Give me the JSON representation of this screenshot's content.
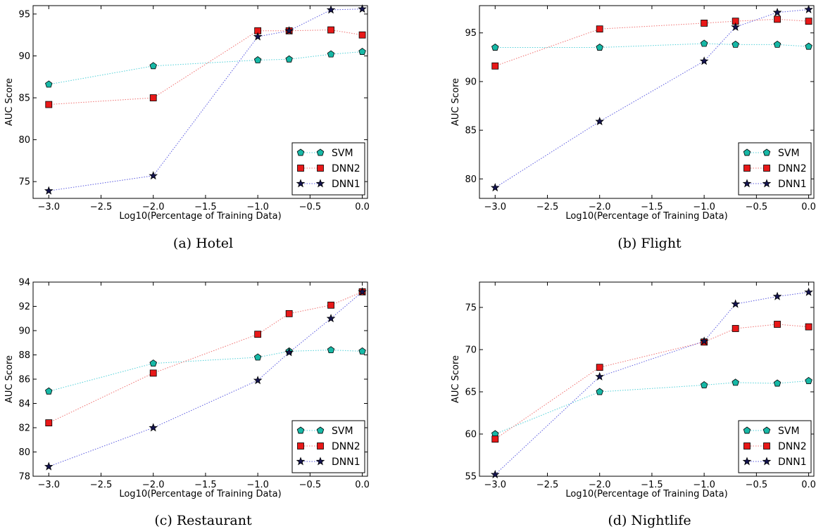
{
  "colors": {
    "SVM": "#17b8a6",
    "DNN2": "#e81818",
    "DNN1": "#141450",
    "SVM_line": "#4fd0d8",
    "DNN2_line": "#f07070",
    "DNN1_line": "#5a5ae0"
  },
  "chart_data": [
    {
      "type": "line",
      "caption": "(a) Hotel",
      "xlabel": "Log10(Percentage of Training Data)",
      "ylabel": "AUC Score",
      "xlim": [
        -3.15,
        0.05
      ],
      "ylim": [
        73,
        96
      ],
      "xticks": [
        -3.0,
        -2.5,
        -2.0,
        -1.5,
        -1.0,
        -0.5,
        0.0
      ],
      "xtick_labels": [
        "−3.0",
        "−2.5",
        "−2.0",
        "−1.5",
        "−1.0",
        "−0.5",
        "0.0"
      ],
      "yticks": [
        75,
        80,
        85,
        90,
        95
      ],
      "ytick_labels": [
        "75",
        "80",
        "85",
        "90",
        "95"
      ],
      "legend_position": "lower-right",
      "x": [
        -3.0,
        -2.0,
        -1.0,
        -0.7,
        -0.3,
        0.0
      ],
      "series": [
        {
          "name": "SVM",
          "marker": "pentagon",
          "values": [
            86.6,
            88.8,
            89.5,
            89.6,
            90.2,
            90.5
          ]
        },
        {
          "name": "DNN2",
          "marker": "square",
          "values": [
            84.2,
            85.0,
            93.0,
            93.0,
            93.1,
            92.5
          ]
        },
        {
          "name": "DNN1",
          "marker": "star",
          "values": [
            73.9,
            75.7,
            92.3,
            93.0,
            95.5,
            95.6
          ]
        }
      ]
    },
    {
      "type": "line",
      "caption": "(b) Flight",
      "xlabel": "Log10(Percentage of Training Data)",
      "ylabel": "AUC Score",
      "xlim": [
        -3.15,
        0.05
      ],
      "ylim": [
        78,
        97.8
      ],
      "xticks": [
        -3.0,
        -2.5,
        -2.0,
        -1.5,
        -1.0,
        -0.5,
        0.0
      ],
      "xtick_labels": [
        "−3.0",
        "−2.5",
        "−2.0",
        "−1.5",
        "−1.0",
        "−0.5",
        "0.0"
      ],
      "yticks": [
        80,
        85,
        90,
        95
      ],
      "ytick_labels": [
        "80",
        "85",
        "90",
        "95"
      ],
      "legend_position": "lower-right",
      "x": [
        -3.0,
        -2.0,
        -1.0,
        -0.7,
        -0.3,
        0.0
      ],
      "series": [
        {
          "name": "SVM",
          "marker": "pentagon",
          "values": [
            93.5,
            93.5,
            93.9,
            93.8,
            93.8,
            93.6
          ]
        },
        {
          "name": "DNN2",
          "marker": "square",
          "values": [
            91.6,
            95.4,
            96.0,
            96.2,
            96.4,
            96.2
          ]
        },
        {
          "name": "DNN1",
          "marker": "star",
          "values": [
            79.1,
            85.9,
            92.1,
            95.6,
            97.1,
            97.4
          ]
        }
      ]
    },
    {
      "type": "line",
      "caption": "(c) Restaurant",
      "xlabel": "Log10(Percentage of Training Data)",
      "ylabel": "AUC Score",
      "xlim": [
        -3.15,
        0.05
      ],
      "ylim": [
        78,
        94
      ],
      "xticks": [
        -3.0,
        -2.5,
        -2.0,
        -1.5,
        -1.0,
        -0.5,
        0.0
      ],
      "xtick_labels": [
        "−3.0",
        "−2.5",
        "−2.0",
        "−1.5",
        "−1.0",
        "−0.5",
        "0.0"
      ],
      "yticks": [
        78,
        80,
        82,
        84,
        86,
        88,
        90,
        92,
        94
      ],
      "ytick_labels": [
        "78",
        "80",
        "82",
        "84",
        "86",
        "88",
        "90",
        "92",
        "94"
      ],
      "legend_position": "lower-right",
      "x": [
        -3.0,
        -2.0,
        -1.0,
        -0.7,
        -0.3,
        0.0
      ],
      "series": [
        {
          "name": "SVM",
          "marker": "pentagon",
          "values": [
            85.0,
            87.3,
            87.8,
            88.3,
            88.4,
            88.3
          ]
        },
        {
          "name": "DNN2",
          "marker": "square",
          "values": [
            82.4,
            86.5,
            89.7,
            91.4,
            92.1,
            93.2
          ]
        },
        {
          "name": "DNN1",
          "marker": "star",
          "values": [
            78.8,
            82.0,
            85.9,
            88.2,
            91.0,
            93.2
          ]
        }
      ]
    },
    {
      "type": "line",
      "caption": "(d) Nightlife",
      "xlabel": "Log10(Percentage of Training Data)",
      "ylabel": "AUC Score",
      "xlim": [
        -3.15,
        0.05
      ],
      "ylim": [
        55,
        78
      ],
      "xticks": [
        -3.0,
        -2.5,
        -2.0,
        -1.5,
        -1.0,
        -0.5,
        0.0
      ],
      "xtick_labels": [
        "−3.0",
        "−2.5",
        "−2.0",
        "−1.5",
        "−1.0",
        "−0.5",
        "0.0"
      ],
      "yticks": [
        55,
        60,
        65,
        70,
        75
      ],
      "ytick_labels": [
        "55",
        "60",
        "65",
        "70",
        "75"
      ],
      "legend_position": "lower-right",
      "x": [
        -3.0,
        -2.0,
        -1.0,
        -0.7,
        -0.3,
        0.0
      ],
      "series": [
        {
          "name": "SVM",
          "marker": "pentagon",
          "values": [
            60.0,
            65.0,
            65.8,
            66.1,
            66.0,
            66.3
          ]
        },
        {
          "name": "DNN2",
          "marker": "square",
          "values": [
            59.4,
            67.9,
            70.9,
            72.5,
            73.0,
            72.7
          ]
        },
        {
          "name": "DNN1",
          "marker": "star",
          "values": [
            55.2,
            66.8,
            71.0,
            75.4,
            76.3,
            76.8
          ]
        }
      ]
    }
  ]
}
